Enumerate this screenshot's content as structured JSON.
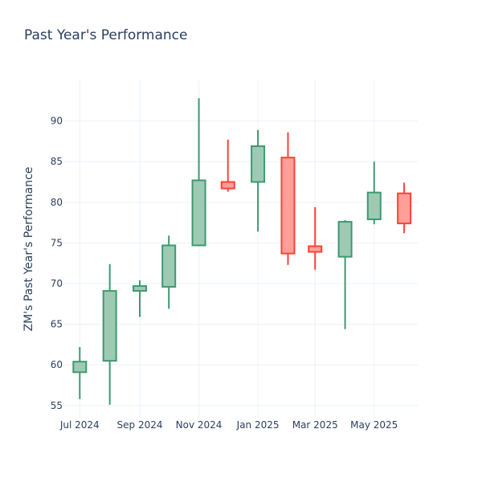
{
  "chart_data": {
    "type": "candlestick",
    "title": "Past Year's Performance",
    "xlabel": "",
    "ylabel": "ZM's Past Year's Performance",
    "ylim": [
      53.5,
      95
    ],
    "y_ticks": [
      55,
      60,
      65,
      70,
      75,
      80,
      85,
      90
    ],
    "x_ticks": [
      {
        "label": "Jul 2024",
        "date": "2024-07-01"
      },
      {
        "label": "Sep 2024",
        "date": "2024-09-01"
      },
      {
        "label": "Nov 2024",
        "date": "2024-11-01"
      },
      {
        "label": "Jan 2025",
        "date": "2025-01-01"
      },
      {
        "label": "Mar 2025",
        "date": "2025-03-01"
      },
      {
        "label": "May 2025",
        "date": "2025-05-01"
      }
    ],
    "xlim": [
      "2024-06-15",
      "2025-06-15"
    ],
    "grid": true,
    "legend": "none",
    "colors": {
      "increasing": "#3d9970",
      "increasing_fill": "#9ecab4",
      "decreasing": "#ff4136",
      "decreasing_fill": "#ff9f9a"
    },
    "candles": [
      {
        "date": "2024-07-01",
        "open": 59.1,
        "high": 62.2,
        "low": 55.8,
        "close": 60.4
      },
      {
        "date": "2024-08-01",
        "open": 60.5,
        "high": 72.4,
        "low": 55.1,
        "close": 69.1
      },
      {
        "date": "2024-09-01",
        "open": 69.1,
        "high": 70.4,
        "low": 65.9,
        "close": 69.7
      },
      {
        "date": "2024-10-01",
        "open": 69.6,
        "high": 75.9,
        "low": 66.9,
        "close": 74.7
      },
      {
        "date": "2024-11-01",
        "open": 74.7,
        "high": 92.8,
        "low": 74.6,
        "close": 82.7
      },
      {
        "date": "2024-12-01",
        "open": 82.5,
        "high": 87.7,
        "low": 81.3,
        "close": 81.7
      },
      {
        "date": "2025-01-01",
        "open": 82.5,
        "high": 88.9,
        "low": 76.4,
        "close": 86.9
      },
      {
        "date": "2025-02-01",
        "open": 85.5,
        "high": 88.6,
        "low": 72.3,
        "close": 73.7
      },
      {
        "date": "2025-03-01",
        "open": 74.6,
        "high": 79.4,
        "low": 71.7,
        "close": 73.9
      },
      {
        "date": "2025-04-01",
        "open": 73.3,
        "high": 77.8,
        "low": 64.4,
        "close": 77.6
      },
      {
        "date": "2025-05-01",
        "open": 77.9,
        "high": 85.0,
        "low": 77.3,
        "close": 81.2
      },
      {
        "date": "2025-06-01",
        "open": 81.1,
        "high": 82.4,
        "low": 76.2,
        "close": 77.4
      }
    ]
  }
}
